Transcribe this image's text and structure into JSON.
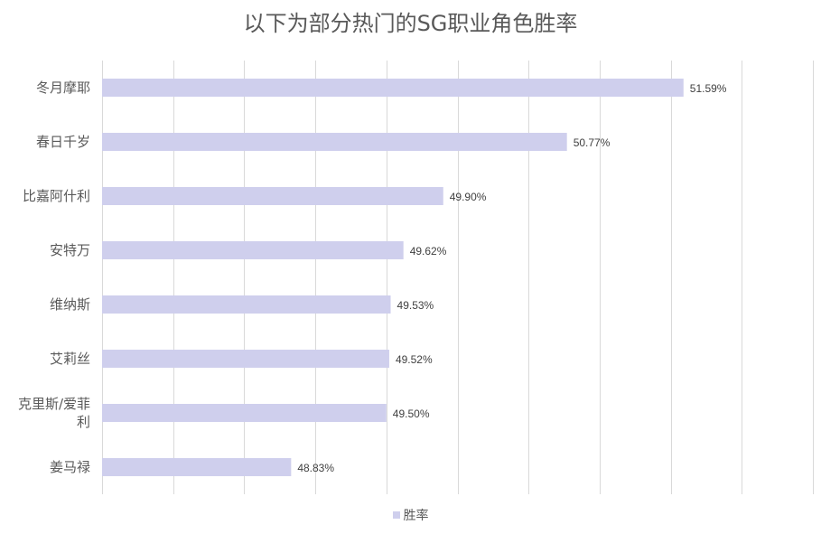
{
  "chart_data": {
    "type": "bar",
    "orientation": "horizontal",
    "title": "以下为部分热门的SG职业角色胜率",
    "categories": [
      "冬月摩耶",
      "春日千岁",
      "比嘉阿什利",
      "安特万",
      "维纳斯",
      "艾莉丝",
      "克里斯/爱菲利",
      "姜马禄"
    ],
    "series": [
      {
        "name": "胜率",
        "values": [
          51.59,
          50.77,
          49.9,
          49.62,
          49.53,
          49.52,
          49.5,
          48.83
        ],
        "labels": [
          "51.59%",
          "50.77%",
          "49.90%",
          "49.62%",
          "49.53%",
          "49.52%",
          "49.50%",
          "48.83%"
        ]
      }
    ],
    "xlim": [
      47.5,
      52.5
    ],
    "grid": true,
    "legend_position": "bottom",
    "colors": {
      "bar": "#cfcfed",
      "grid": "#d9d9d9",
      "text": "#595959",
      "label": "#404040"
    }
  }
}
